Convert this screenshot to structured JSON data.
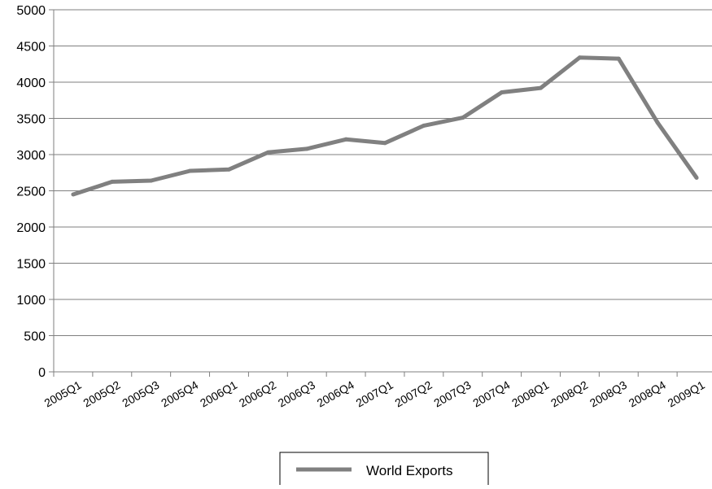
{
  "chart_data": {
    "type": "line",
    "title": "",
    "xlabel": "",
    "ylabel": "",
    "categories": [
      "2005Q1",
      "2005Q2",
      "2005Q3",
      "2005Q4",
      "2006Q1",
      "2006Q2",
      "2006Q3",
      "2006Q4",
      "2007Q1",
      "2007Q2",
      "2007Q3",
      "2007Q4",
      "2008Q1",
      "2008Q2",
      "2008Q3",
      "2008Q4",
      "2009Q1"
    ],
    "series": [
      {
        "name": "World Exports",
        "color": "#808080",
        "values": [
          2450,
          2625,
          2640,
          2775,
          2795,
          3030,
          3080,
          3210,
          3160,
          3400,
          3510,
          3860,
          3920,
          4340,
          4325,
          3440,
          2680
        ]
      }
    ],
    "ylim": [
      0,
      5000
    ],
    "yticks": [
      0,
      500,
      1000,
      1500,
      2000,
      2500,
      3000,
      3500,
      4000,
      4500,
      5000
    ],
    "grid": true,
    "legend": "bottom-center",
    "colors": {
      "gridline": "#7f7f7f",
      "axis": "#7f7f7f",
      "line": "#808080"
    }
  }
}
